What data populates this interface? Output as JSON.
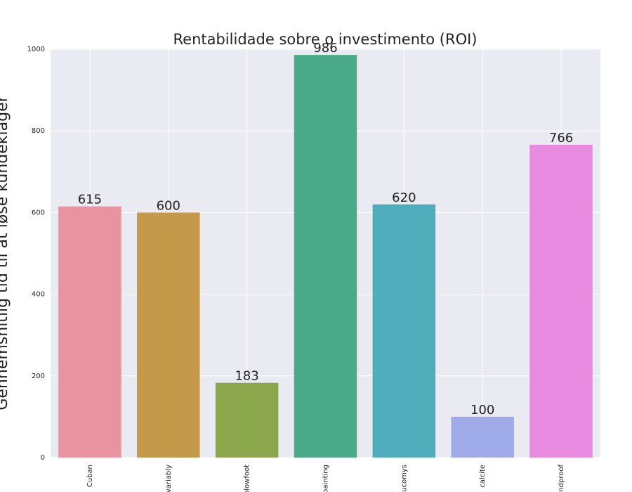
{
  "chart_data": {
    "type": "bar",
    "title": "Rentabilidade sobre o investimento (ROI)",
    "xlabel": "",
    "ylabel": "Gennemsnitlig tid til at løse kundeklager",
    "categories": [
      "Cuban",
      "variably",
      "plowfoot",
      "painting",
      "Leucomys",
      "calcite",
      "windproof"
    ],
    "values": [
      615,
      600,
      183,
      986,
      620,
      100,
      766
    ],
    "data_labels": [
      "615",
      "600",
      "183",
      "986",
      "620",
      "100",
      "766"
    ],
    "colors": [
      "#e8939f",
      "#c49a4a",
      "#8aa84b",
      "#4aab8a",
      "#4fadbb",
      "#a0acea",
      "#e88ae0"
    ],
    "ylim": [
      0,
      1000
    ],
    "yticks": [
      0,
      200,
      400,
      600,
      800,
      1000
    ],
    "grid": true,
    "legend": "none",
    "background": "#eaeaf2"
  }
}
